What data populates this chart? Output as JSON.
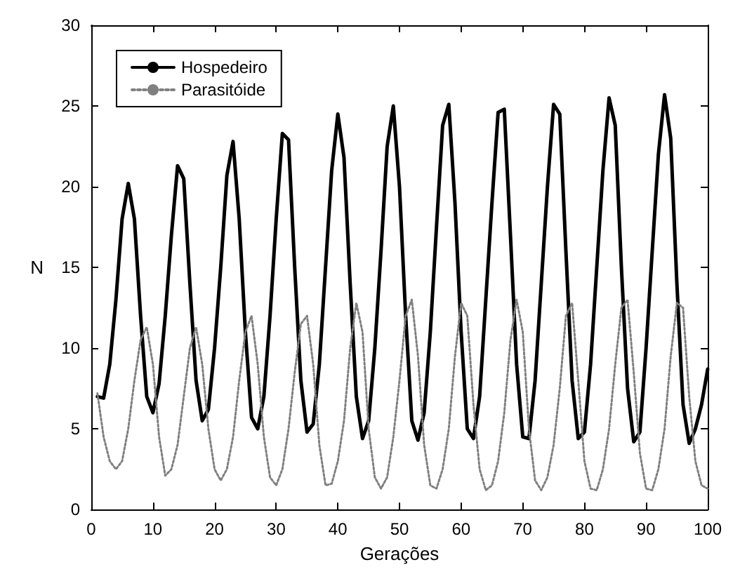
{
  "chart_data": {
    "type": "line",
    "xlabel": "Gerações",
    "ylabel": "N",
    "xlim": [
      0,
      100
    ],
    "xticks": [
      0,
      10,
      20,
      30,
      40,
      50,
      60,
      70,
      80,
      90,
      100
    ],
    "ylim": [
      0,
      30
    ],
    "yticks": [
      0,
      5,
      10,
      15,
      20,
      25,
      30
    ],
    "grid": false,
    "legend": "top left",
    "marker": "none",
    "x": [
      1,
      2,
      3,
      4,
      5,
      6,
      7,
      8,
      9,
      10,
      11,
      12,
      13,
      14,
      15,
      16,
      17,
      18,
      19,
      20,
      21,
      22,
      23,
      24,
      25,
      26,
      27,
      28,
      29,
      30,
      31,
      32,
      33,
      34,
      35,
      36,
      37,
      38,
      39,
      40,
      41,
      42,
      43,
      44,
      45,
      46,
      47,
      48,
      49,
      50,
      51,
      52,
      53,
      54,
      55,
      56,
      57,
      58,
      59,
      60,
      61,
      62,
      63,
      64,
      65,
      66,
      67,
      68,
      69,
      70,
      71,
      72,
      73,
      74,
      75,
      76,
      77,
      78,
      79,
      80,
      81,
      82,
      83,
      84,
      85,
      86,
      87,
      88,
      89,
      90,
      91,
      92,
      93,
      94,
      95,
      96,
      97,
      98,
      99,
      100
    ],
    "series": [
      {
        "name": "Hospedeiro",
        "color": "#000000",
        "line_style": "solid",
        "values": [
          7.0,
          6.9,
          9,
          13,
          18,
          20.2,
          18,
          12,
          7,
          6,
          7.8,
          12,
          17,
          21.3,
          20.5,
          14,
          8,
          5.5,
          6.2,
          10,
          15,
          20.7,
          22.8,
          18,
          11,
          5.7,
          5.0,
          7,
          12,
          18,
          23.3,
          22.9,
          15,
          8,
          4.8,
          5.3,
          9,
          15,
          21,
          24.5,
          21.8,
          14,
          7,
          4.4,
          5.5,
          10,
          16,
          22.5,
          25.0,
          20,
          12,
          5.5,
          4.3,
          6,
          11,
          17.5,
          23.8,
          25.1,
          19,
          11,
          5,
          4.4,
          7,
          13,
          19,
          24.6,
          24.8,
          17,
          9,
          4.5,
          4.4,
          8,
          14,
          20,
          25.1,
          24.5,
          16,
          8,
          4.4,
          4.8,
          9,
          15,
          21,
          25.5,
          23.8,
          15,
          7.5,
          4.2,
          4.8,
          10,
          16,
          22,
          25.7,
          23,
          14,
          6.5,
          4.1,
          5,
          6.5,
          8.7
        ]
      },
      {
        "name": "Parasitóide",
        "color": "#808080",
        "line_style": "dotted",
        "values": [
          7.2,
          4.5,
          3,
          2.5,
          3,
          5,
          8,
          10.5,
          11.3,
          9,
          4.5,
          2.1,
          2.5,
          4,
          7,
          10,
          11.3,
          9,
          5,
          2.5,
          1.8,
          2.5,
          4.5,
          8,
          11,
          12,
          9,
          4.5,
          2,
          1.5,
          2.5,
          5,
          8.5,
          11.5,
          12,
          9,
          4,
          1.5,
          1.6,
          3,
          5.5,
          10,
          12.8,
          11,
          5,
          2,
          1.3,
          2,
          4.5,
          8,
          12,
          13,
          9.5,
          4,
          1.5,
          1.3,
          2.5,
          5,
          9.5,
          12.8,
          12,
          6.5,
          2.5,
          1.2,
          1.5,
          3,
          6,
          10.5,
          13,
          11,
          5,
          1.8,
          1.2,
          2,
          4,
          7.5,
          12,
          12.8,
          8,
          3,
          1.3,
          1.2,
          2.5,
          5,
          9,
          12.5,
          13,
          8.5,
          3.5,
          1.3,
          1.2,
          2.5,
          5,
          9.5,
          12.8,
          12.5,
          7,
          3,
          1.5,
          1.3
        ]
      }
    ]
  }
}
